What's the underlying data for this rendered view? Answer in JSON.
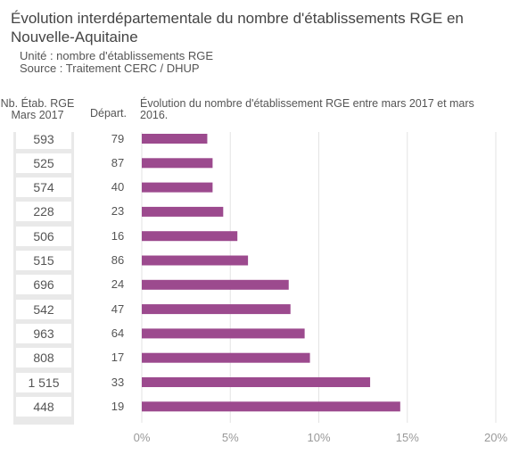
{
  "header": {
    "title": "Évolution interdépartementale du nombre d'établissements RGE en Nouvelle-Aquitaine",
    "unit": "Unité : nombre d'établissements RGE",
    "source": "Source : Traitement CERC / DHUP"
  },
  "columns": {
    "count_header": "Nb. Étab. RGE Mars 2017",
    "dept_header": "Départ.",
    "evolution_header": "Évolution du nombre d'établissement RGE entre mars 2017 et mars 2016."
  },
  "colors": {
    "bar": "#9c4a8e",
    "grid": "#e3e3e3"
  },
  "chart_data": {
    "type": "bar",
    "orientation": "horizontal",
    "categories": [
      "79",
      "87",
      "40",
      "23",
      "16",
      "86",
      "24",
      "47",
      "64",
      "17",
      "33",
      "19"
    ],
    "counts": [
      "593",
      "525",
      "574",
      "228",
      "506",
      "515",
      "696",
      "542",
      "963",
      "808",
      "1 515",
      "448"
    ],
    "values": [
      3.7,
      4.0,
      4.0,
      4.6,
      5.4,
      6.0,
      8.3,
      8.4,
      9.2,
      9.5,
      12.9,
      14.6
    ],
    "xlim": [
      0,
      20
    ],
    "xticks": [
      0,
      5,
      10,
      15,
      20
    ],
    "xtick_labels": [
      "0%",
      "5%",
      "10%",
      "15%",
      "20%"
    ],
    "grid": true
  }
}
